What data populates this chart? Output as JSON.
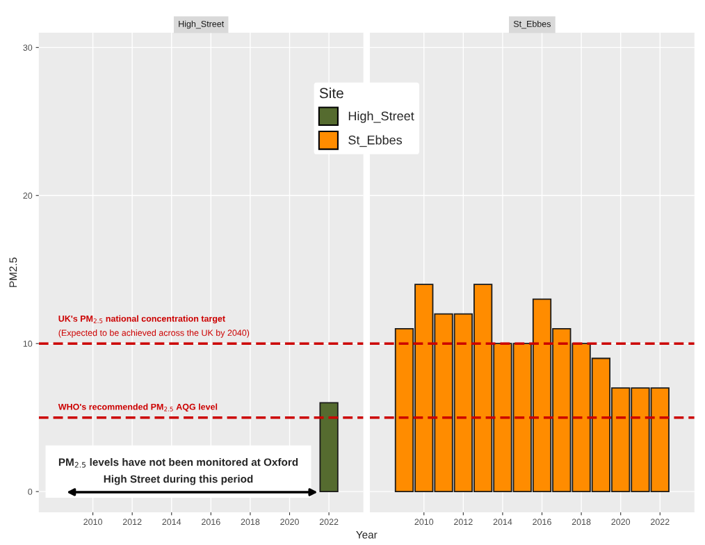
{
  "chart_data": [
    {
      "type": "bar",
      "title": "High_Street",
      "xlabel": "Year",
      "ylabel": "PM2.5",
      "legend_title": "Site",
      "legend": "top right",
      "x": [
        2022
      ],
      "series": [
        {
          "name": "High_Street",
          "color": "#556b2f",
          "values": [
            6
          ]
        }
      ],
      "xlim": [
        2007.25,
        2023.75
      ],
      "xticks": [
        2010,
        2012,
        2014,
        2016,
        2018,
        2020,
        2022
      ],
      "ylim": [
        -1.4,
        31
      ],
      "yticks": [
        0,
        10,
        20,
        30
      ],
      "grid": true,
      "ref_lines": [
        {
          "axis": "y",
          "value": 10,
          "label": "UK's PM$_{2.5}$ national concentration target\n(Expected to be achieved across the UK by 2040)",
          "color": "#cc0000",
          "line_style": "dashed"
        },
        {
          "axis": "y",
          "value": 5,
          "label": "WHO's recommended PM$_{2.5}$ AQG level",
          "color": "#cc0000",
          "line_style": "dashed"
        }
      ],
      "annotations": [
        "PM$_{2.5}$ levels have not been monitored at Oxford\nHigh Street during this period"
      ]
    },
    {
      "type": "bar",
      "title": "St_Ebbes",
      "x": [
        2009,
        2010,
        2011,
        2012,
        2013,
        2014,
        2015,
        2016,
        2017,
        2018,
        2019,
        2020,
        2021,
        2022
      ],
      "series": [
        {
          "name": "St_Ebbes",
          "color": "#ff8c00",
          "values": [
            11,
            14,
            12,
            12,
            14,
            10,
            10,
            13,
            11,
            10,
            9,
            7,
            7,
            7
          ]
        }
      ],
      "xlim": [
        2007.25,
        2023.75
      ],
      "xticks": [
        2010,
        2012,
        2014,
        2016,
        2018,
        2020,
        2022
      ],
      "ylim": [
        -1.4,
        31
      ],
      "yticks": [
        0,
        10,
        20,
        30
      ],
      "grid": true,
      "tick_labels": "x",
      "ref_lines": [
        {
          "axis": "y",
          "value": 10,
          "color": "#cc0000",
          "line_style": "dashed"
        },
        {
          "axis": "y",
          "value": 5,
          "color": "#cc0000",
          "line_style": "dashed"
        }
      ]
    }
  ]
}
